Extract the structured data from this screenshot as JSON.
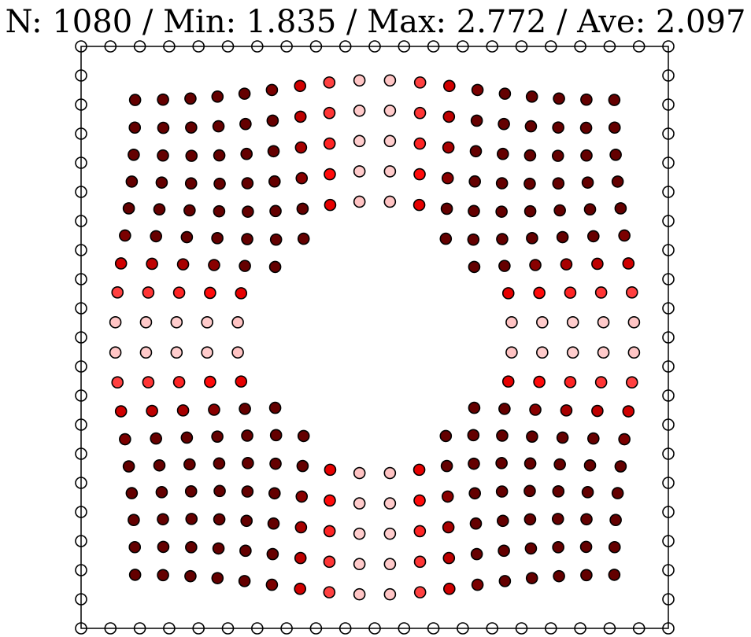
{
  "title": "N: 1080 / Min: 1.835 / Max: 2.772 / Ave: 2.097",
  "color_scale": {
    "low": "#c8c8ff",
    "mid": "#ffffff",
    "high": "#ff0000",
    "max": "#640000"
  },
  "chart_data": {
    "type": "scatter",
    "title": "N: 1080 / Min: 1.835 / Max: 2.772 / Ave: 2.097",
    "xlim": [
      -1,
      1
    ],
    "ylim": [
      -1,
      1
    ],
    "grid": false,
    "boundary": {
      "points_per_side": 20,
      "marker": "open-circle"
    },
    "interior_grid": {
      "nx": 18,
      "ny": 18,
      "hole_radius": 0.42,
      "value_range": [
        1.835,
        2.772
      ]
    }
  }
}
